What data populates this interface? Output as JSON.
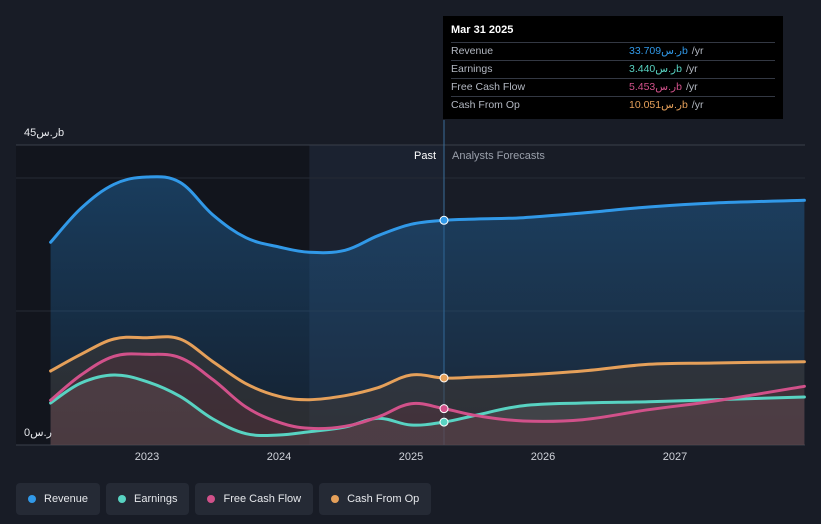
{
  "chart_data": {
    "type": "area",
    "title": "",
    "ylabel": "",
    "ytick_labels": [
      "45ر.سb",
      "0ر.س"
    ],
    "ylim": [
      0,
      45
    ],
    "xlim": [
      2022.27,
      2027.98
    ],
    "xticks": [
      2023,
      2024,
      2025,
      2026,
      2027
    ],
    "xtick_labels": [
      "2023",
      "2024",
      "2025",
      "2026",
      "2027"
    ],
    "divider_x": 2025.25,
    "past_shade_start": 2024.23,
    "past_label": "Past",
    "forecast_label": "Analysts Forecasts",
    "series": [
      {
        "name": "Revenue",
        "color": "#3199e8",
        "points": [
          [
            2022.27,
            30.4
          ],
          [
            2022.5,
            35.5
          ],
          [
            2022.75,
            39.1
          ],
          [
            2023.0,
            40.2
          ],
          [
            2023.25,
            39.4
          ],
          [
            2023.5,
            34.5
          ],
          [
            2023.75,
            31.1
          ],
          [
            2024.0,
            29.7
          ],
          [
            2024.23,
            28.9
          ],
          [
            2024.5,
            29.2
          ],
          [
            2024.75,
            31.4
          ],
          [
            2025.0,
            33.1
          ],
          [
            2025.25,
            33.709
          ],
          [
            2025.5,
            33.9
          ],
          [
            2025.85,
            34.1
          ],
          [
            2026.3,
            34.8
          ],
          [
            2026.8,
            35.7
          ],
          [
            2027.3,
            36.3
          ],
          [
            2027.98,
            36.7
          ]
        ]
      },
      {
        "name": "Earnings",
        "color": "#58d3c2",
        "points": [
          [
            2022.27,
            6.3
          ],
          [
            2022.5,
            9.3
          ],
          [
            2022.75,
            10.5
          ],
          [
            2023.0,
            9.5
          ],
          [
            2023.25,
            7.3
          ],
          [
            2023.5,
            3.9
          ],
          [
            2023.75,
            1.7
          ],
          [
            2024.0,
            1.5
          ],
          [
            2024.23,
            2.0
          ],
          [
            2024.5,
            2.7
          ],
          [
            2024.75,
            4.0
          ],
          [
            2025.0,
            3.0
          ],
          [
            2025.25,
            3.44
          ],
          [
            2025.5,
            4.5
          ],
          [
            2025.85,
            5.9
          ],
          [
            2026.3,
            6.3
          ],
          [
            2026.8,
            6.5
          ],
          [
            2027.3,
            6.8
          ],
          [
            2027.98,
            7.2
          ]
        ]
      },
      {
        "name": "Free Cash Flow",
        "color": "#d1518a",
        "points": [
          [
            2022.27,
            6.7
          ],
          [
            2022.5,
            10.5
          ],
          [
            2022.75,
            13.3
          ],
          [
            2023.0,
            13.6
          ],
          [
            2023.25,
            13.1
          ],
          [
            2023.5,
            9.8
          ],
          [
            2023.75,
            5.7
          ],
          [
            2024.0,
            3.4
          ],
          [
            2024.23,
            2.5
          ],
          [
            2024.5,
            2.8
          ],
          [
            2024.75,
            4.2
          ],
          [
            2025.0,
            6.2
          ],
          [
            2025.25,
            5.453
          ],
          [
            2025.5,
            4.4
          ],
          [
            2025.85,
            3.6
          ],
          [
            2026.3,
            3.8
          ],
          [
            2026.8,
            5.3
          ],
          [
            2027.3,
            6.6
          ],
          [
            2027.98,
            8.8
          ]
        ]
      },
      {
        "name": "Cash From Op",
        "color": "#e5a05a",
        "points": [
          [
            2022.27,
            11.1
          ],
          [
            2022.5,
            13.6
          ],
          [
            2022.75,
            15.9
          ],
          [
            2023.0,
            16.1
          ],
          [
            2023.25,
            15.9
          ],
          [
            2023.5,
            12.5
          ],
          [
            2023.75,
            9.2
          ],
          [
            2024.0,
            7.3
          ],
          [
            2024.23,
            6.8
          ],
          [
            2024.5,
            7.4
          ],
          [
            2024.75,
            8.6
          ],
          [
            2025.0,
            10.5
          ],
          [
            2025.25,
            10.051
          ],
          [
            2025.5,
            10.2
          ],
          [
            2025.85,
            10.5
          ],
          [
            2026.3,
            11.1
          ],
          [
            2026.8,
            12.1
          ],
          [
            2027.3,
            12.3
          ],
          [
            2027.98,
            12.5
          ]
        ]
      }
    ]
  },
  "tooltip": {
    "date": "Mar 31 2025",
    "unit": "/yr",
    "rows": [
      {
        "label": "Revenue",
        "value": "33.709ر.سb",
        "color": "#3199e8"
      },
      {
        "label": "Earnings",
        "value": "3.440ر.سb",
        "color": "#58d3c2"
      },
      {
        "label": "Free Cash Flow",
        "value": "5.453ر.سb",
        "color": "#d1518a"
      },
      {
        "label": "Cash From Op",
        "value": "10.051ر.سb",
        "color": "#e5a05a"
      }
    ]
  },
  "legend": [
    {
      "label": "Revenue",
      "color": "#3199e8"
    },
    {
      "label": "Earnings",
      "color": "#58d3c2"
    },
    {
      "label": "Free Cash Flow",
      "color": "#d1518a"
    },
    {
      "label": "Cash From Op",
      "color": "#e5a05a"
    }
  ]
}
